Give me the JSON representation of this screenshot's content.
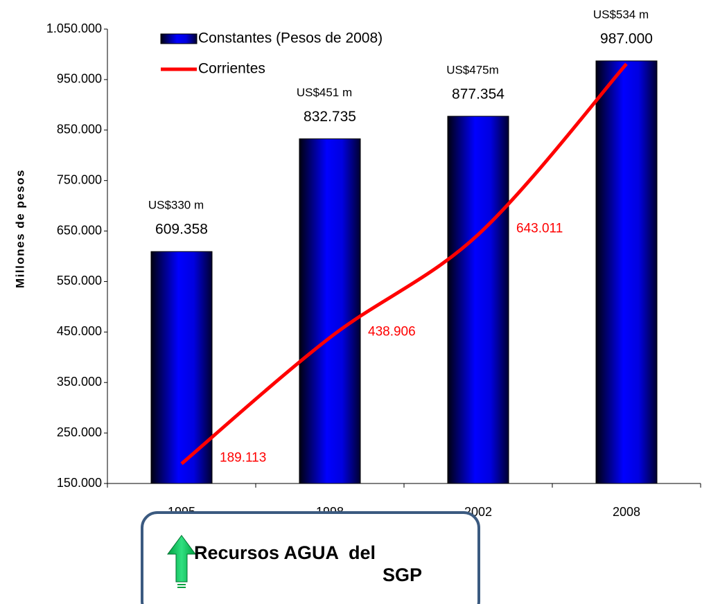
{
  "chart_data": {
    "type": "bar",
    "y_axis_label": "Millones de pesos",
    "categories": [
      "1995",
      "1998",
      "2002",
      "2008"
    ],
    "ylim": [
      150000,
      1050000
    ],
    "yticks": [
      {
        "value": 150000,
        "label": "150.000"
      },
      {
        "value": 250000,
        "label": "250.000"
      },
      {
        "value": 350000,
        "label": "350.000"
      },
      {
        "value": 450000,
        "label": "450.000"
      },
      {
        "value": 550000,
        "label": "550.000"
      },
      {
        "value": 650000,
        "label": "650.000"
      },
      {
        "value": 750000,
        "label": "750.000"
      },
      {
        "value": 850000,
        "label": "850.000"
      },
      {
        "value": 950000,
        "label": "950.000"
      },
      {
        "value": 1050000,
        "label": "1.050.000"
      }
    ],
    "series": [
      {
        "name": "Constantes (Pesos de 2008)",
        "type": "bar",
        "color": "#0000ff",
        "values": [
          609358,
          832735,
          877354,
          987000
        ],
        "value_labels": [
          "609.358",
          "832.735",
          "877.354",
          "987.000"
        ],
        "annotations": [
          "US$330 m",
          "US$451 m",
          "US$475m",
          "US$534 m"
        ]
      },
      {
        "name": "Corrientes",
        "type": "line",
        "color": "#ff0000",
        "values": [
          189113,
          438906,
          643011,
          981000
        ],
        "value_labels": [
          "189.113",
          "438.906",
          "643.011",
          null
        ]
      }
    ],
    "legend": "top-left",
    "note": {
      "title": "Recursos AGUA  del",
      "subtitle": "SGP"
    }
  }
}
